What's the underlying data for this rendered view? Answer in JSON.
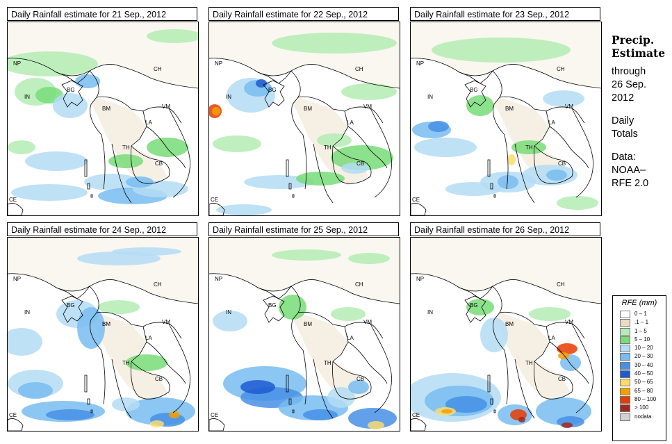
{
  "panels": [
    {
      "title": "Daily Rainfall estimate for  21 Sep., 2012"
    },
    {
      "title": "Daily Rainfall estimate for  22 Sep., 2012"
    },
    {
      "title": "Daily Rainfall estimate for  23 Sep., 2012"
    },
    {
      "title": "Daily Rainfall estimate for  24 Sep., 2012"
    },
    {
      "title": "Daily Rainfall estimate for  25 Sep., 2012"
    },
    {
      "title": "Daily Rainfall estimate for  26 Sep., 2012"
    }
  ],
  "country_labels": {
    "np": "NP",
    "ch": "CH",
    "in": "IN",
    "bg": "BG",
    "bm": "BM",
    "vm": "VM",
    "la": "LA",
    "th": "TH",
    "cb": "CB",
    "ce": "CE"
  },
  "side": {
    "title_line1": "Precip.",
    "title_line2": "Estimate",
    "through": "through",
    "date_line1": "26 Sep.",
    "date_line2": "2012",
    "daily_line1": "Daily",
    "daily_line2": "Totals",
    "data_line1": "Data:",
    "data_line2": "NOAA–",
    "data_line3": "RFE 2.0"
  },
  "legend": {
    "title": "RFE (mm)",
    "items": [
      {
        "label": "0 – 1",
        "color": "#ffffff"
      },
      {
        "label": ".1 – 1",
        "color": "#eadcc4"
      },
      {
        "label": "1 – 5",
        "color": "#b4ecb4"
      },
      {
        "label": "5 – 10",
        "color": "#78dc78"
      },
      {
        "label": "10 – 20",
        "color": "#b4dcf4"
      },
      {
        "label": "20 – 30",
        "color": "#78bcf0"
      },
      {
        "label": "30 – 40",
        "color": "#4690e6"
      },
      {
        "label": "40 – 50",
        "color": "#1e5ad2"
      },
      {
        "label": "50 – 65",
        "color": "#fadc6e"
      },
      {
        "label": "65 – 80",
        "color": "#f5a000"
      },
      {
        "label": "80 – 100",
        "color": "#e63c00"
      },
      {
        "label": "> 100",
        "color": "#a0281e"
      },
      {
        "label": "nodata",
        "color": "#d2d2d2"
      }
    ]
  }
}
